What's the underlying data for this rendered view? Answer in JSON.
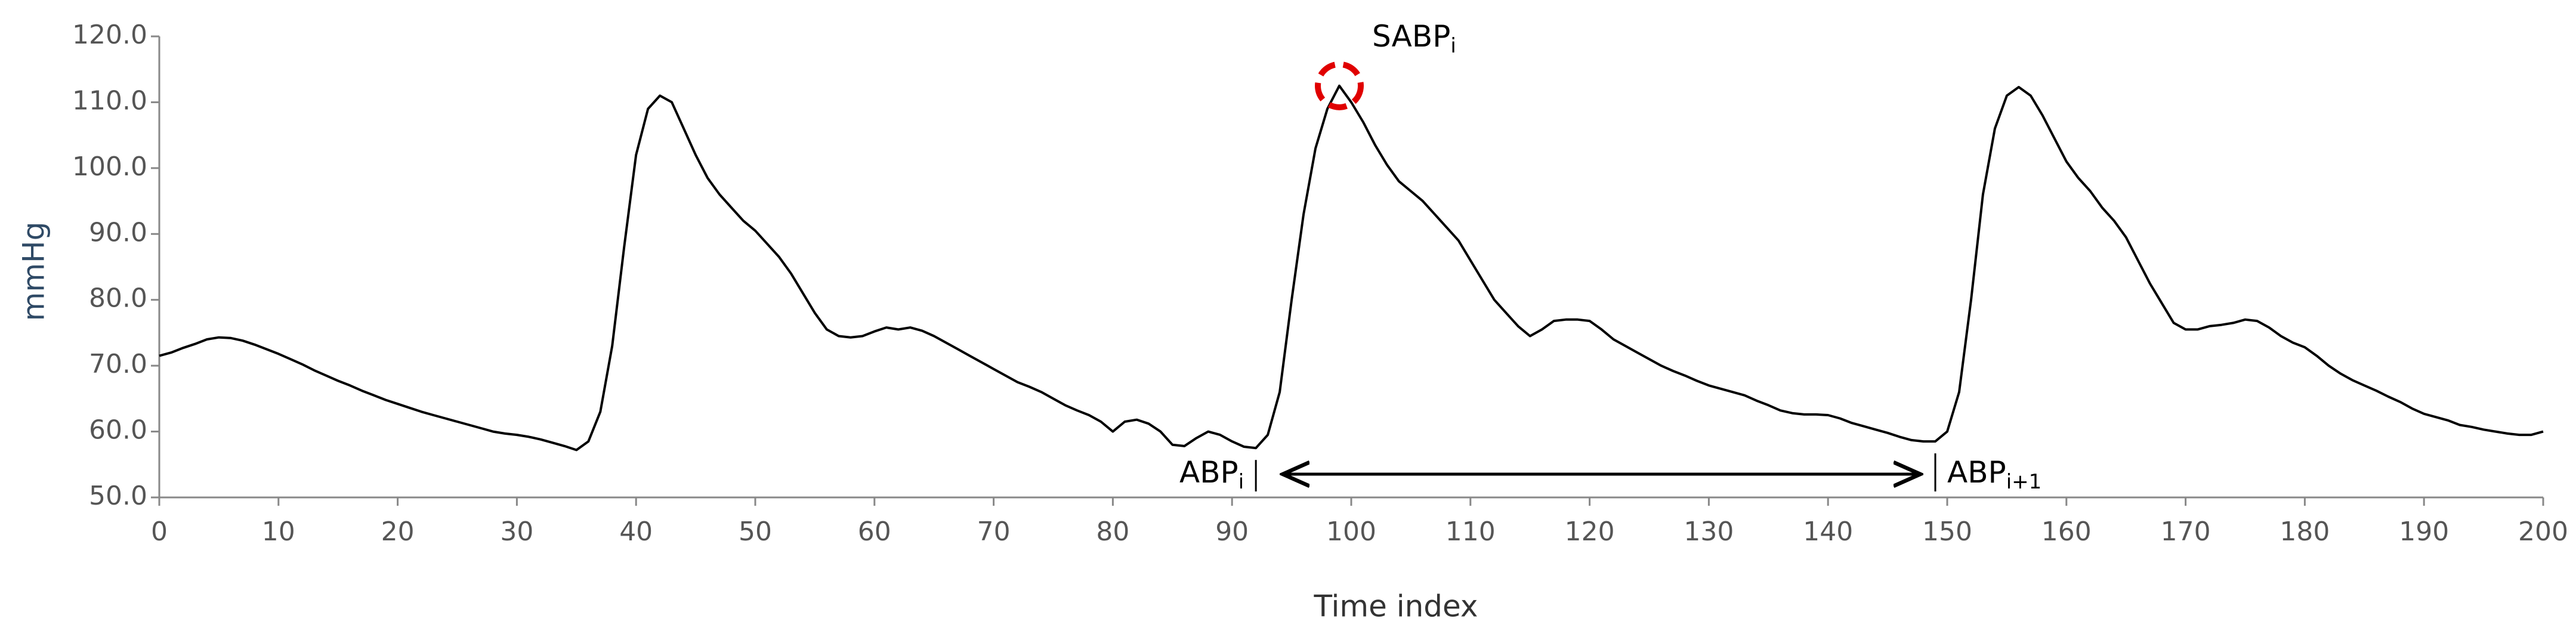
{
  "chart_data": {
    "type": "line",
    "x_label": "Time index",
    "y_label": "mmHg",
    "xlim": [
      0,
      200
    ],
    "xticks": [
      0,
      10,
      20,
      30,
      40,
      50,
      60,
      70,
      80,
      90,
      100,
      110,
      120,
      130,
      140,
      150,
      160,
      170,
      180,
      190,
      200
    ],
    "ylim": [
      50,
      120
    ],
    "yticks": [
      {
        "value": 50,
        "label": "50.0"
      },
      {
        "value": 60,
        "label": "60.0"
      },
      {
        "value": 70,
        "label": "70.0"
      },
      {
        "value": 80,
        "label": "80.0"
      },
      {
        "value": 90,
        "label": "90.0"
      },
      {
        "value": 100,
        "label": "100.0"
      },
      {
        "value": 110,
        "label": "110.0"
      },
      {
        "value": 120,
        "label": "120.0"
      }
    ],
    "series": [
      {
        "color": "#000000",
        "x": [
          0,
          1,
          2,
          3,
          4,
          5,
          6,
          7,
          8,
          9,
          10,
          11,
          12,
          13,
          14,
          15,
          16,
          17,
          18,
          19,
          20,
          21,
          22,
          23,
          24,
          25,
          26,
          27,
          28,
          29,
          30,
          31,
          32,
          33,
          34,
          35,
          36,
          37,
          38,
          39,
          40,
          41,
          42,
          43,
          44,
          45,
          46,
          47,
          48,
          49,
          50,
          51,
          52,
          53,
          54,
          55,
          56,
          57,
          58,
          59,
          60,
          61,
          62,
          63,
          64,
          65,
          66,
          67,
          68,
          69,
          70,
          71,
          72,
          73,
          74,
          75,
          76,
          77,
          78,
          79,
          80,
          81,
          82,
          83,
          84,
          85,
          86,
          87,
          88,
          89,
          90,
          91,
          92,
          93,
          94,
          95,
          96,
          97,
          98,
          99,
          100,
          101,
          102,
          103,
          104,
          105,
          106,
          107,
          108,
          109,
          110,
          111,
          112,
          113,
          114,
          115,
          116,
          117,
          118,
          119,
          120,
          121,
          122,
          123,
          124,
          125,
          126,
          127,
          128,
          129,
          130,
          131,
          132,
          133,
          134,
          135,
          136,
          137,
          138,
          139,
          140,
          141,
          142,
          143,
          144,
          145,
          146,
          147,
          148,
          149,
          150,
          151,
          152,
          153,
          154,
          155,
          156,
          157,
          158,
          159,
          160,
          161,
          162,
          163,
          164,
          165,
          166,
          167,
          168,
          169,
          170,
          171,
          172,
          173,
          174,
          175,
          176,
          177,
          178,
          179,
          180,
          181,
          182,
          183,
          184,
          185,
          186,
          187,
          188,
          189,
          190,
          191,
          192,
          193,
          194,
          195,
          196,
          197,
          198,
          199,
          200
        ],
        "values": [
          71.5,
          72,
          72.7,
          73.3,
          74,
          74.3,
          74.2,
          73.8,
          73.2,
          72.5,
          71.8,
          71,
          70.2,
          69.3,
          68.5,
          67.7,
          67,
          66.2,
          65.5,
          64.8,
          64.2,
          63.6,
          63,
          62.5,
          62,
          61.5,
          61,
          60.5,
          60,
          59.7,
          59.5,
          59.2,
          58.8,
          58.3,
          57.8,
          57.2,
          58.5,
          63,
          73,
          88,
          102,
          109,
          111,
          110,
          106,
          102,
          98.5,
          96,
          94,
          92,
          90.5,
          88.5,
          86.5,
          84,
          81,
          78,
          75.5,
          74.5,
          74.3,
          74.5,
          75.2,
          75.8,
          75.5,
          75.8,
          75.3,
          74.5,
          73.5,
          72.5,
          71.5,
          70.5,
          69.5,
          68.5,
          67.5,
          66.8,
          66,
          65,
          64,
          63.2,
          62.5,
          61.5,
          60,
          61.5,
          61.8,
          61.2,
          60,
          58,
          57.8,
          59,
          60,
          59.5,
          58.5,
          57.7,
          57.5,
          59.5,
          66,
          80,
          93,
          103,
          109,
          112.5,
          110,
          107,
          103.5,
          100.5,
          98,
          96.5,
          95,
          93,
          91,
          89,
          86,
          83,
          80,
          78,
          76,
          74.5,
          75.5,
          76.8,
          77,
          77,
          76.8,
          75.5,
          74,
          73,
          72,
          71,
          70,
          69.2,
          68.5,
          67.7,
          67,
          66.5,
          66,
          65.5,
          64.7,
          64,
          63.2,
          62.8,
          62.6,
          62.6,
          62.5,
          62,
          61.3,
          60.8,
          60.3,
          59.8,
          59.2,
          58.7,
          58.5,
          58.5,
          60,
          66,
          80,
          96,
          106,
          111,
          112.3,
          111,
          108,
          104.5,
          101,
          98.5,
          96.5,
          94,
          92,
          89.5,
          86,
          82.5,
          79.5,
          76.5,
          75.5,
          75.5,
          76,
          76.2,
          76.5,
          77,
          76.8,
          75.8,
          74.5,
          73.5,
          72.8,
          71.5,
          70,
          68.8,
          67.8,
          67,
          66.2,
          65.3,
          64.5,
          63.5,
          62.7,
          62.2,
          61.7,
          61,
          60.7,
          60.3,
          60,
          59.7,
          59.5,
          59.5,
          60
        ]
      }
    ],
    "annotations": [
      {
        "text": "SABP",
        "sub": "i",
        "x": 99
      },
      {
        "text": "ABP",
        "sub": "i",
        "x": 92
      },
      {
        "text": "ABP",
        "sub": "i+1",
        "x": 149
      }
    ]
  }
}
